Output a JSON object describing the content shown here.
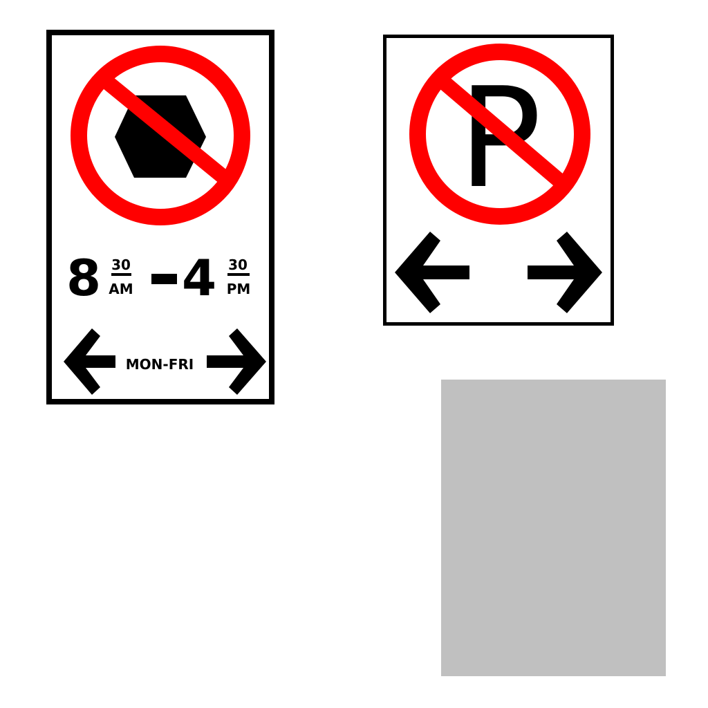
{
  "colors": {
    "prohibition_red": "#ff0000",
    "symbol_black": "#000000",
    "sign_background": "#ffffff",
    "panel_gray": "#c0c0c0"
  },
  "no_stopping_sign": {
    "symbol": "hexagon-icon",
    "times": {
      "start_hour": "8",
      "start_minutes": "30",
      "start_period": "AM",
      "separator": "-",
      "end_hour": "4",
      "end_minutes": "30",
      "end_period": "PM"
    },
    "days": "MON-FRI"
  },
  "no_parking_sign": {
    "symbol_letter": "P"
  }
}
